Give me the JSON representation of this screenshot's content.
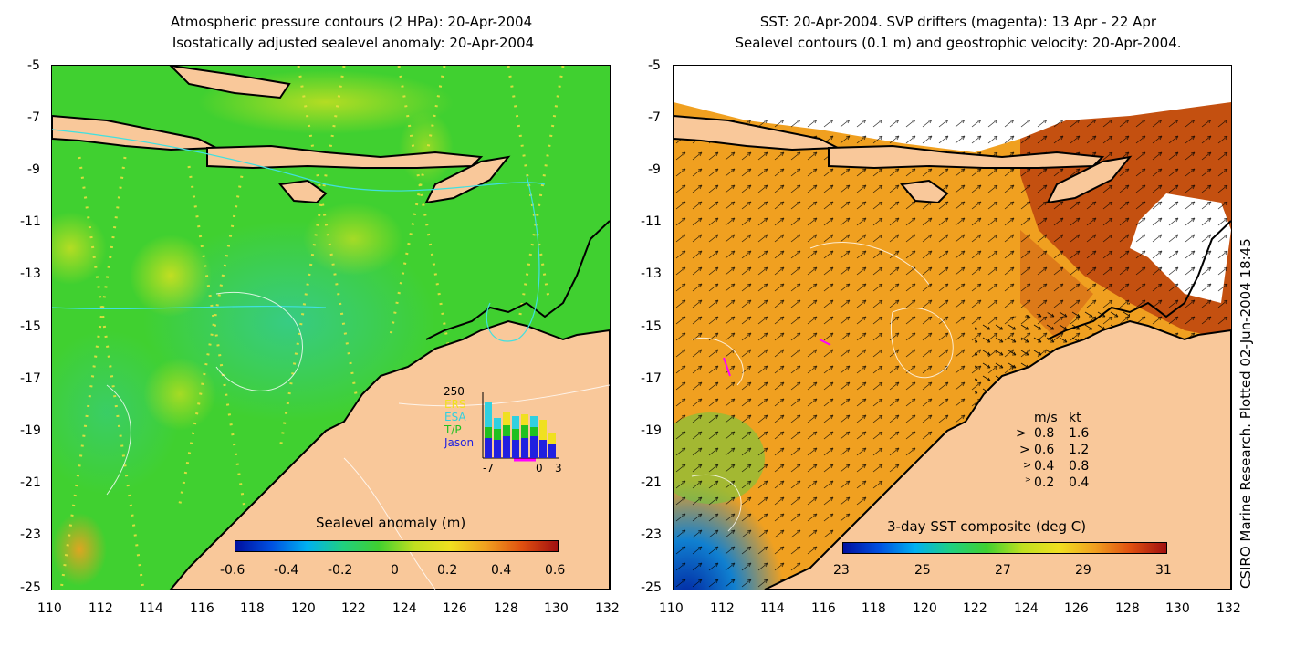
{
  "left_panel": {
    "title_line1": "Atmospheric pressure contours (2 HPa): 20-Apr-2004",
    "title_line2": "Isostatically adjusted sealevel anomaly: 20-Apr-2004",
    "colorbar_label": "Sealevel anomaly (m)",
    "colorbar_ticks": [
      "-0.6",
      "-0.4",
      "-0.2",
      "0",
      "0.2",
      "0.4",
      "0.6"
    ],
    "inset": {
      "ymax_label": "250",
      "legend": [
        "ERS",
        "ESA",
        "T/P",
        "Jason"
      ],
      "legend_colors": [
        "#f0e020",
        "#30d0e0",
        "#20c020",
        "#2020e0"
      ],
      "x_ticks": [
        "-7",
        "0",
        "3"
      ]
    }
  },
  "right_panel": {
    "title_line1": "SST: 20-Apr-2004. SVP drifters (magenta): 13 Apr - 22 Apr",
    "title_line2": "Sealevel contours (0.1 m) and geostrophic velocity: 20-Apr-2004.",
    "colorbar_label": "3-day SST composite (deg C)",
    "colorbar_ticks": [
      "23",
      "25",
      "27",
      "29",
      "31"
    ],
    "velocity_legend": {
      "header_ms": "m/s",
      "header_kt": "kt",
      "rows": [
        {
          "ms": "0.8",
          "kt": "1.6"
        },
        {
          "ms": "0.6",
          "kt": "1.2"
        },
        {
          "ms": "0.4",
          "kt": "0.8"
        },
        {
          "ms": "0.2",
          "kt": "0.4"
        }
      ]
    }
  },
  "axes": {
    "y_ticks": [
      "-5",
      "-7",
      "-9",
      "-11",
      "-13",
      "-15",
      "-17",
      "-19",
      "-21",
      "-23",
      "-25"
    ],
    "x_ticks": [
      "110",
      "112",
      "114",
      "116",
      "118",
      "120",
      "122",
      "124",
      "126",
      "128",
      "130",
      "132"
    ]
  },
  "side_label": "CSIRO Marine Research. Plotted 02-Jun-2004 18:45",
  "colors": {
    "land": "#f9c89a",
    "ocean_green": "#30d040",
    "sst_orange": "#f0a020",
    "sst_red": "#c04010"
  }
}
